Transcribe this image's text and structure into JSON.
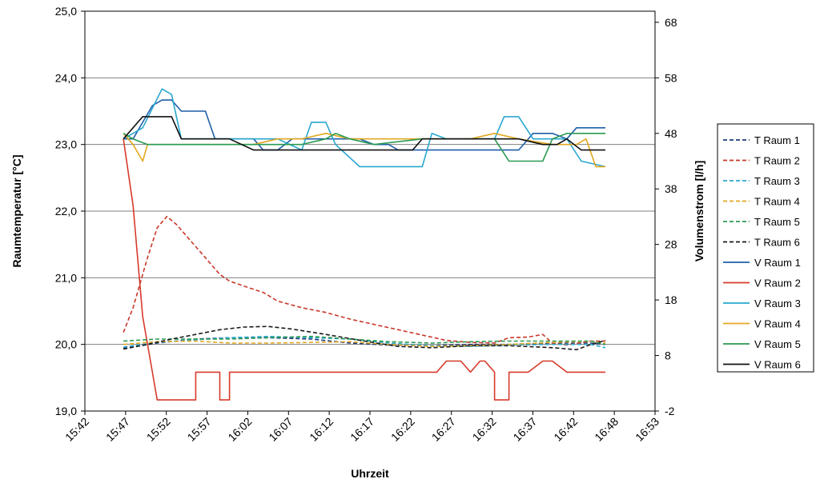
{
  "chart_data": {
    "type": "line",
    "xlabel": "Uhrzeit",
    "ylabel_left": "Raumtemperatur [°C]",
    "ylabel_right": "Volumenstrom [l/h]",
    "x_ticks": [
      "15:42",
      "15:47",
      "15:52",
      "15:57",
      "16:02",
      "16:07",
      "16:12",
      "16:17",
      "16:22",
      "16:27",
      "16:32",
      "16:37",
      "16:42",
      "16:48",
      "16:53"
    ],
    "y_left_ticks": [
      "19,0",
      "20,0",
      "21,0",
      "22,0",
      "23,0",
      "24,0",
      "25,0"
    ],
    "y_right_ticks": [
      "-2",
      "8",
      "18",
      "28",
      "38",
      "48",
      "58",
      "68"
    ],
    "ylim_left": [
      19,
      25
    ],
    "ylim_right": [
      -2,
      70
    ],
    "grid": true,
    "legend_position": "right",
    "series": [
      {
        "name": "T Raum 1",
        "axis": "left",
        "dash": true,
        "color": "#1f3a7a",
        "points": [
          [
            15.78,
            19.94
          ],
          [
            15.85,
            20.02
          ],
          [
            15.93,
            20.08
          ],
          [
            16.0,
            20.1
          ],
          [
            16.08,
            20.1
          ],
          [
            16.17,
            20.08
          ],
          [
            16.25,
            20.02
          ],
          [
            16.33,
            19.99
          ],
          [
            16.42,
            19.98
          ],
          [
            16.5,
            20.0
          ],
          [
            16.58,
            20.0
          ],
          [
            16.67,
            20.02
          ],
          [
            16.75,
            20.02
          ],
          [
            16.78,
            20.0
          ]
        ]
      },
      {
        "name": "T Raum 2",
        "axis": "left",
        "dash": true,
        "color": "#c8382a",
        "points": [
          [
            15.78,
            20.18
          ],
          [
            15.8,
            20.55
          ],
          [
            15.83,
            21.3
          ],
          [
            15.85,
            21.75
          ],
          [
            15.87,
            21.92
          ],
          [
            15.89,
            21.8
          ],
          [
            15.92,
            21.55
          ],
          [
            15.95,
            21.3
          ],
          [
            15.98,
            21.05
          ],
          [
            16.0,
            20.95
          ],
          [
            16.04,
            20.85
          ],
          [
            16.07,
            20.78
          ],
          [
            16.1,
            20.65
          ],
          [
            16.15,
            20.55
          ],
          [
            16.2,
            20.48
          ],
          [
            16.25,
            20.38
          ],
          [
            16.3,
            20.3
          ],
          [
            16.35,
            20.22
          ],
          [
            16.4,
            20.14
          ],
          [
            16.45,
            20.06
          ],
          [
            16.5,
            20.03
          ],
          [
            16.55,
            20.02
          ],
          [
            16.58,
            20.1
          ],
          [
            16.62,
            20.11
          ],
          [
            16.65,
            20.15
          ],
          [
            16.67,
            20.02
          ],
          [
            16.7,
            19.99
          ],
          [
            16.75,
            20.05
          ],
          [
            16.78,
            20.05
          ]
        ]
      },
      {
        "name": "T Raum 3",
        "axis": "left",
        "dash": true,
        "color": "#2aa7cf",
        "points": [
          [
            15.78,
            19.96
          ],
          [
            15.85,
            20.03
          ],
          [
            15.93,
            20.07
          ],
          [
            16.0,
            20.1
          ],
          [
            16.08,
            20.12
          ],
          [
            16.17,
            20.1
          ],
          [
            16.25,
            20.08
          ],
          [
            16.33,
            20.02
          ],
          [
            16.42,
            19.98
          ],
          [
            16.5,
            19.97
          ],
          [
            16.58,
            19.99
          ],
          [
            16.67,
            20.0
          ],
          [
            16.75,
            20.0
          ],
          [
            16.78,
            19.95
          ]
        ]
      },
      {
        "name": "T Raum 4",
        "axis": "left",
        "dash": true,
        "color": "#e2a820",
        "points": [
          [
            15.78,
            20.0
          ],
          [
            15.85,
            20.04
          ],
          [
            15.93,
            20.05
          ],
          [
            16.0,
            20.02
          ],
          [
            16.08,
            20.02
          ],
          [
            16.17,
            20.03
          ],
          [
            16.25,
            20.04
          ],
          [
            16.33,
            20.0
          ],
          [
            16.42,
            19.97
          ],
          [
            16.5,
            19.98
          ],
          [
            16.58,
            20.0
          ],
          [
            16.67,
            20.03
          ],
          [
            16.75,
            20.05
          ],
          [
            16.78,
            20.02
          ]
        ]
      },
      {
        "name": "T Raum 5",
        "axis": "left",
        "dash": true,
        "color": "#2a9a52",
        "points": [
          [
            15.78,
            20.05
          ],
          [
            15.85,
            20.08
          ],
          [
            15.93,
            20.08
          ],
          [
            16.0,
            20.08
          ],
          [
            16.08,
            20.1
          ],
          [
            16.17,
            20.12
          ],
          [
            16.25,
            20.08
          ],
          [
            16.33,
            20.04
          ],
          [
            16.42,
            20.02
          ],
          [
            16.5,
            20.04
          ],
          [
            16.58,
            20.05
          ],
          [
            16.67,
            20.05
          ],
          [
            16.75,
            20.05
          ],
          [
            16.78,
            20.0
          ]
        ]
      },
      {
        "name": "T Raum 6",
        "axis": "left",
        "dash": true,
        "color": "#1a1a1a",
        "points": [
          [
            15.78,
            19.93
          ],
          [
            15.83,
            20.0
          ],
          [
            15.88,
            20.08
          ],
          [
            15.93,
            20.15
          ],
          [
            15.98,
            20.22
          ],
          [
            16.03,
            20.26
          ],
          [
            16.08,
            20.27
          ],
          [
            16.13,
            20.23
          ],
          [
            16.2,
            20.15
          ],
          [
            16.28,
            20.05
          ],
          [
            16.35,
            19.97
          ],
          [
            16.42,
            19.95
          ],
          [
            16.5,
            19.98
          ],
          [
            16.58,
            19.98
          ],
          [
            16.67,
            19.95
          ],
          [
            16.72,
            19.92
          ],
          [
            16.75,
            20.0
          ],
          [
            16.78,
            20.06
          ]
        ]
      },
      {
        "name": "V Raum 1",
        "axis": "right",
        "dash": false,
        "color": "#1f5fa8",
        "points": [
          [
            15.78,
            47
          ],
          [
            15.8,
            47
          ],
          [
            15.82,
            50
          ],
          [
            15.84,
            53
          ],
          [
            15.86,
            54
          ],
          [
            15.88,
            54
          ],
          [
            15.9,
            52
          ],
          [
            15.95,
            52
          ],
          [
            15.97,
            47
          ],
          [
            16.05,
            47
          ],
          [
            16.07,
            45
          ],
          [
            16.1,
            45
          ],
          [
            16.13,
            47
          ],
          [
            16.27,
            47
          ],
          [
            16.3,
            46
          ],
          [
            16.33,
            46
          ],
          [
            16.35,
            45
          ],
          [
            16.55,
            45
          ],
          [
            16.6,
            45
          ],
          [
            16.63,
            48
          ],
          [
            16.67,
            48
          ],
          [
            16.7,
            47
          ],
          [
            16.72,
            49
          ],
          [
            16.78,
            49
          ]
        ]
      },
      {
        "name": "V Raum 2",
        "axis": "right",
        "dash": false,
        "color": "#d63a2a",
        "points": [
          [
            15.78,
            47
          ],
          [
            15.8,
            35
          ],
          [
            15.82,
            15
          ],
          [
            15.84,
            5
          ],
          [
            15.85,
            0
          ],
          [
            15.93,
            0
          ],
          [
            15.93,
            5
          ],
          [
            15.98,
            5
          ],
          [
            15.98,
            0
          ],
          [
            16.0,
            0
          ],
          [
            16.0,
            5
          ],
          [
            16.43,
            5
          ],
          [
            16.45,
            7
          ],
          [
            16.48,
            7
          ],
          [
            16.5,
            5
          ],
          [
            16.52,
            7
          ],
          [
            16.53,
            7
          ],
          [
            16.55,
            5
          ],
          [
            16.55,
            0
          ],
          [
            16.58,
            0
          ],
          [
            16.58,
            5
          ],
          [
            16.62,
            5
          ],
          [
            16.65,
            7
          ],
          [
            16.67,
            7
          ],
          [
            16.7,
            5
          ],
          [
            16.78,
            5
          ]
        ]
      },
      {
        "name": "V Raum 3",
        "axis": "right",
        "dash": false,
        "color": "#2aa7cf",
        "points": [
          [
            15.78,
            47
          ],
          [
            15.82,
            49
          ],
          [
            15.86,
            56
          ],
          [
            15.88,
            55
          ],
          [
            15.9,
            47
          ],
          [
            16.0,
            47
          ],
          [
            16.05,
            47
          ],
          [
            16.1,
            47
          ],
          [
            16.15,
            45
          ],
          [
            16.17,
            50
          ],
          [
            16.2,
            50
          ],
          [
            16.22,
            46
          ],
          [
            16.27,
            42
          ],
          [
            16.32,
            42
          ],
          [
            16.35,
            42
          ],
          [
            16.4,
            42
          ],
          [
            16.42,
            48
          ],
          [
            16.45,
            47
          ],
          [
            16.55,
            47
          ],
          [
            16.57,
            51
          ],
          [
            16.6,
            51
          ],
          [
            16.63,
            47
          ],
          [
            16.7,
            47
          ],
          [
            16.73,
            43
          ],
          [
            16.78,
            42
          ]
        ]
      },
      {
        "name": "V Raum 4",
        "axis": "right",
        "dash": false,
        "color": "#e2a820",
        "points": [
          [
            15.78,
            48
          ],
          [
            15.8,
            46
          ],
          [
            15.82,
            43
          ],
          [
            15.83,
            46
          ],
          [
            15.88,
            46
          ],
          [
            15.95,
            46
          ],
          [
            16.05,
            46
          ],
          [
            16.1,
            47
          ],
          [
            16.15,
            47
          ],
          [
            16.2,
            48
          ],
          [
            16.25,
            47
          ],
          [
            16.35,
            47
          ],
          [
            16.45,
            47
          ],
          [
            16.5,
            47
          ],
          [
            16.55,
            48
          ],
          [
            16.6,
            47
          ],
          [
            16.67,
            46
          ],
          [
            16.72,
            46
          ],
          [
            16.74,
            47
          ],
          [
            16.76,
            42
          ],
          [
            16.78,
            42
          ]
        ]
      },
      {
        "name": "V Raum 5",
        "axis": "right",
        "dash": false,
        "color": "#2a9a52",
        "points": [
          [
            15.78,
            48
          ],
          [
            15.8,
            47
          ],
          [
            15.83,
            46
          ],
          [
            15.9,
            46
          ],
          [
            16.0,
            46
          ],
          [
            16.1,
            46
          ],
          [
            16.15,
            46
          ],
          [
            16.2,
            47
          ],
          [
            16.22,
            48
          ],
          [
            16.25,
            47
          ],
          [
            16.3,
            46
          ],
          [
            16.4,
            47
          ],
          [
            16.5,
            47
          ],
          [
            16.55,
            47
          ],
          [
            16.58,
            43
          ],
          [
            16.62,
            43
          ],
          [
            16.65,
            43
          ],
          [
            16.67,
            47
          ],
          [
            16.7,
            48
          ],
          [
            16.74,
            48
          ],
          [
            16.78,
            48
          ]
        ]
      },
      {
        "name": "V Raum 6",
        "axis": "right",
        "dash": false,
        "color": "#111111",
        "points": [
          [
            15.78,
            47
          ],
          [
            15.82,
            51
          ],
          [
            15.85,
            51
          ],
          [
            15.88,
            51
          ],
          [
            15.9,
            47
          ],
          [
            15.97,
            47
          ],
          [
            16.0,
            47
          ],
          [
            16.05,
            45
          ],
          [
            16.1,
            45
          ],
          [
            16.18,
            45
          ],
          [
            16.22,
            45
          ],
          [
            16.27,
            45
          ],
          [
            16.32,
            45
          ],
          [
            16.38,
            45
          ],
          [
            16.4,
            47
          ],
          [
            16.5,
            47
          ],
          [
            16.55,
            47
          ],
          [
            16.6,
            47
          ],
          [
            16.65,
            46
          ],
          [
            16.68,
            46
          ],
          [
            16.7,
            47
          ],
          [
            16.73,
            45
          ],
          [
            16.76,
            45
          ],
          [
            16.78,
            45
          ]
        ]
      }
    ]
  }
}
